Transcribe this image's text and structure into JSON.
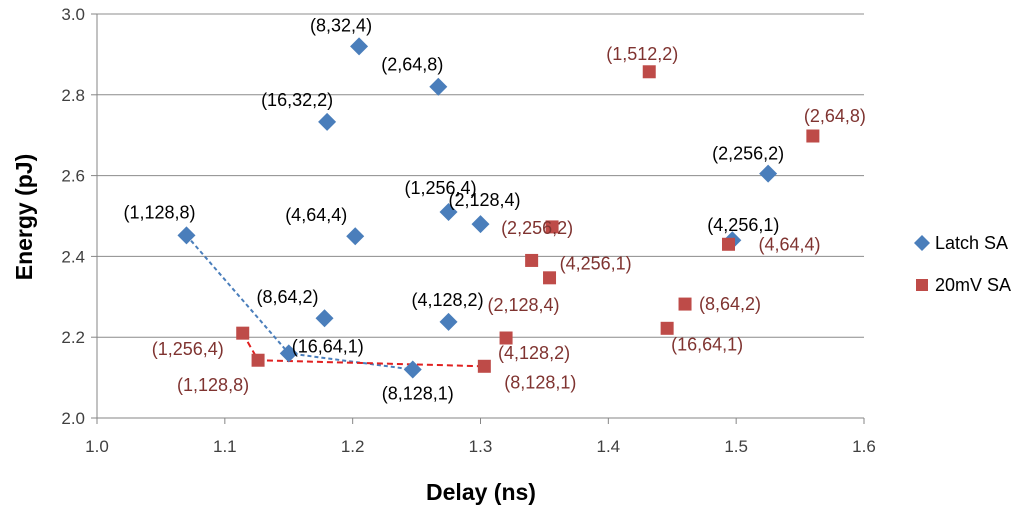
{
  "chart_data": {
    "type": "scatter",
    "title": "",
    "xlabel": "Delay (ns)",
    "ylabel": "Energy (pJ)",
    "xlim": [
      1.0,
      1.6
    ],
    "ylim": [
      2.0,
      3.0
    ],
    "x_ticks": [
      "1.0",
      "1.1",
      "1.2",
      "1.3",
      "1.4",
      "1.5",
      "1.6"
    ],
    "y_ticks": [
      "2.0",
      "2.2",
      "2.4",
      "2.6",
      "2.8",
      "3.0"
    ],
    "grid": "horizontal",
    "legend_position": "right",
    "series": [
      {
        "name": "Latch SA",
        "marker": "diamond",
        "color": "#4a7ebb",
        "points": [
          {
            "x": 1.205,
            "y": 2.92,
            "label": "(8,32,4)"
          },
          {
            "x": 1.267,
            "y": 2.82,
            "label": "(2,64,8)"
          },
          {
            "x": 1.18,
            "y": 2.733,
            "label": "(16,32,2)"
          },
          {
            "x": 1.525,
            "y": 2.605,
            "label": "(2,256,2)"
          },
          {
            "x": 1.275,
            "y": 2.51,
            "label": "(1,256,4)"
          },
          {
            "x": 1.3,
            "y": 2.48,
            "label": "(2,128,4)"
          },
          {
            "x": 1.07,
            "y": 2.452,
            "label": "(1,128,8)"
          },
          {
            "x": 1.202,
            "y": 2.45,
            "label": "(4,64,4)"
          },
          {
            "x": 1.497,
            "y": 2.44,
            "label": "(4,256,1)"
          },
          {
            "x": 1.178,
            "y": 2.247,
            "label": "(8,64,2)"
          },
          {
            "x": 1.275,
            "y": 2.238,
            "label": "(4,128,2)"
          },
          {
            "x": 1.15,
            "y": 2.16,
            "label": "(16,64,1)"
          },
          {
            "x": 1.247,
            "y": 2.12,
            "label": "(8,128,1)"
          }
        ],
        "frontier": [
          {
            "x": 1.07,
            "y": 2.452
          },
          {
            "x": 1.15,
            "y": 2.16
          },
          {
            "x": 1.247,
            "y": 2.12
          }
        ]
      },
      {
        "name": "20mV SA",
        "marker": "square",
        "color": "#be4b48",
        "label_color": "#7f3330",
        "points": [
          {
            "x": 1.432,
            "y": 2.857,
            "label": "(1,512,2)"
          },
          {
            "x": 1.56,
            "y": 2.698,
            "label": "(2,64,8)"
          },
          {
            "x": 1.356,
            "y": 2.473,
            "label": "(2,256,2)"
          },
          {
            "x": 1.494,
            "y": 2.43,
            "label": "(4,64,4)"
          },
          {
            "x": 1.34,
            "y": 2.39,
            "label": "(4,256,1)"
          },
          {
            "x": 1.354,
            "y": 2.347,
            "label": "(2,128,4)"
          },
          {
            "x": 1.46,
            "y": 2.282,
            "label": "(8,64,2)"
          },
          {
            "x": 1.446,
            "y": 2.222,
            "label": "(16,64,1)"
          },
          {
            "x": 1.114,
            "y": 2.21,
            "label": "(1,256,4)"
          },
          {
            "x": 1.32,
            "y": 2.198,
            "label": "(4,128,2)"
          },
          {
            "x": 1.126,
            "y": 2.143,
            "label": "(1,128,8)"
          },
          {
            "x": 1.303,
            "y": 2.128,
            "label": "(8,128,1)"
          }
        ],
        "frontier": [
          {
            "x": 1.114,
            "y": 2.21
          },
          {
            "x": 1.126,
            "y": 2.143
          },
          {
            "x": 1.303,
            "y": 2.128
          }
        ]
      }
    ]
  }
}
